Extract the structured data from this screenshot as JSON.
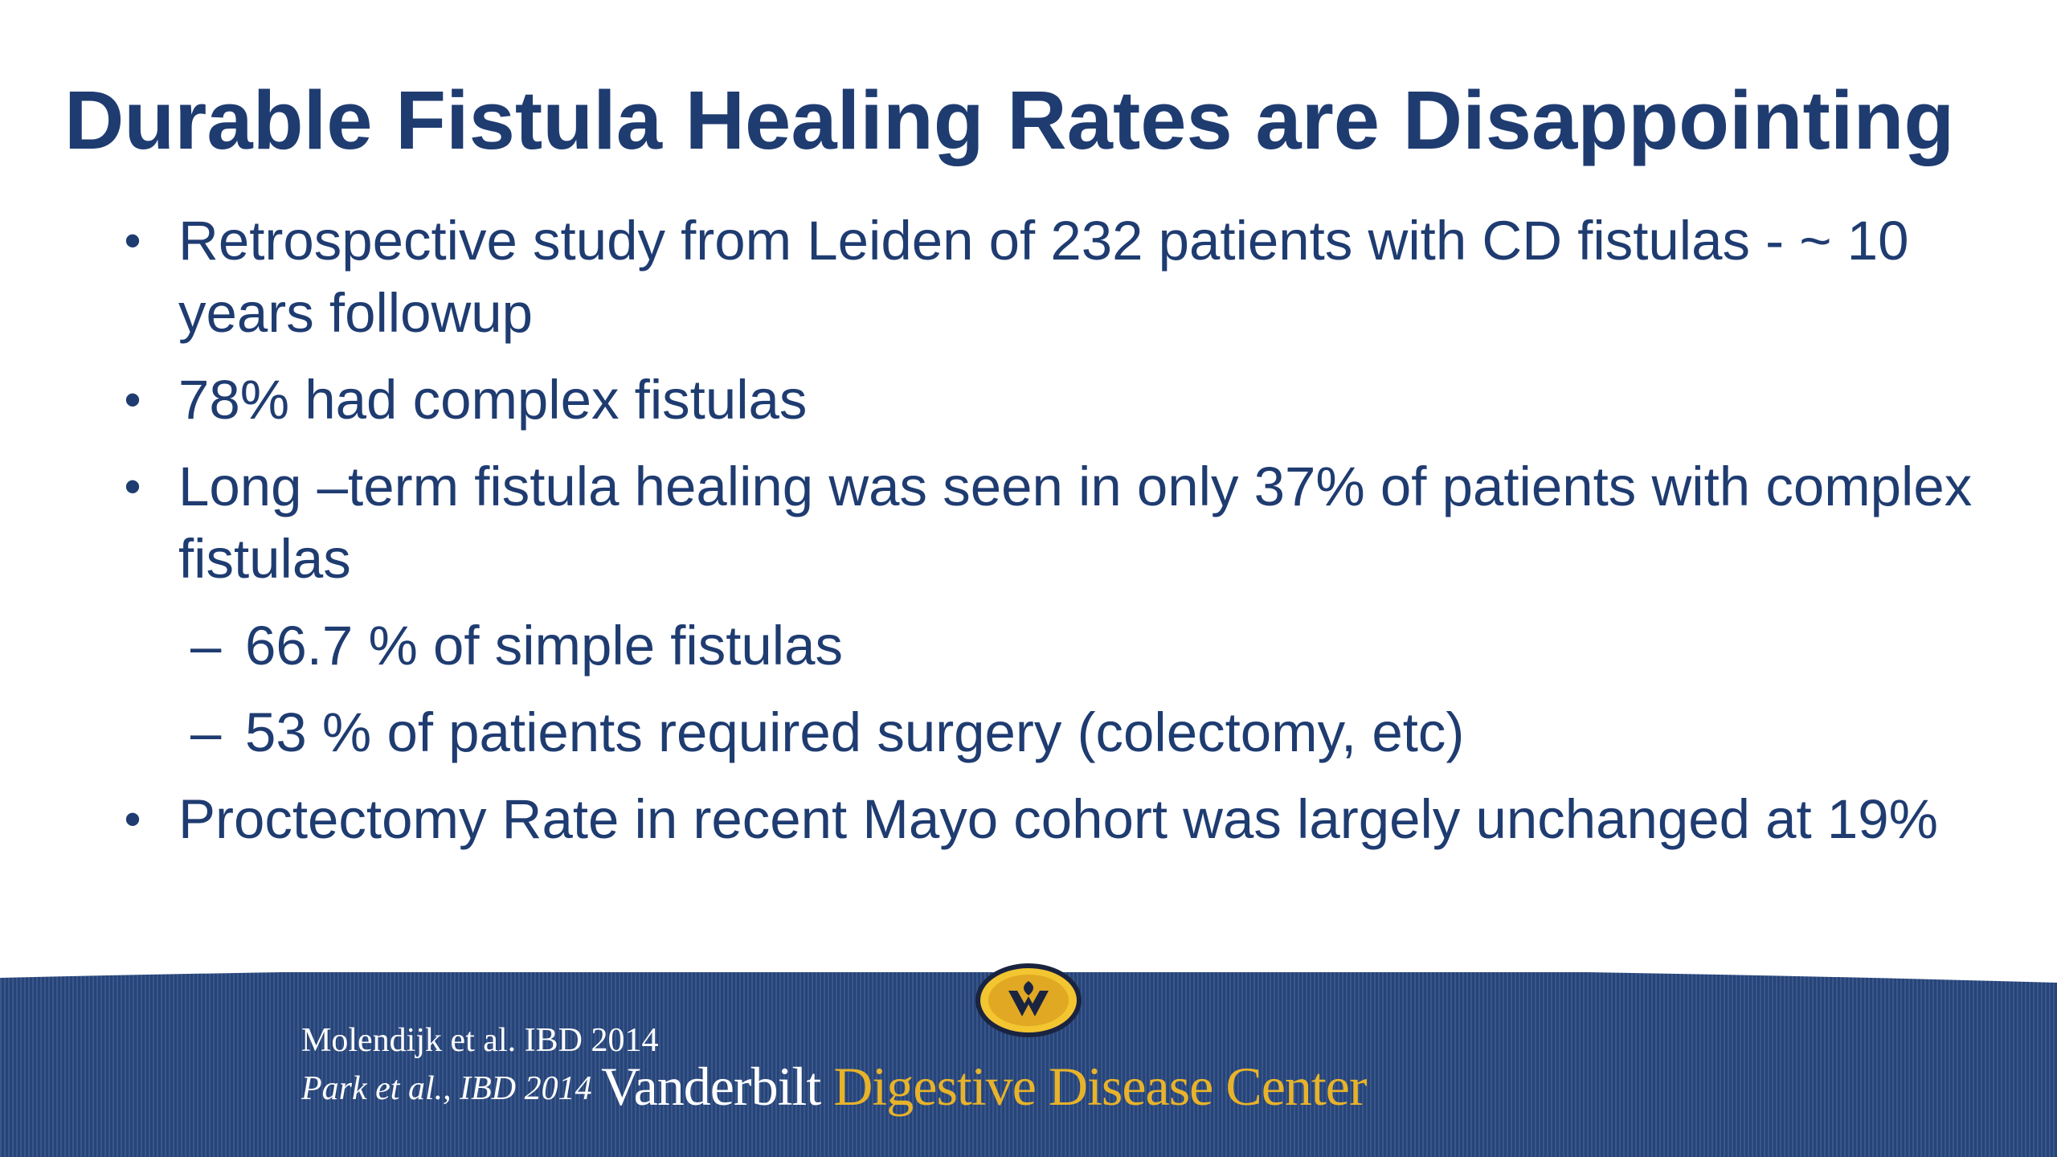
{
  "slide": {
    "title": "Durable Fistula Healing Rates are Disappointing",
    "bullet_marker": "•",
    "sub_marker": "–",
    "bullets": [
      {
        "text": "Retrospective study from Leiden of 232 patients with CD fistulas - ~ 10 years followup"
      },
      {
        "text": "78% had complex fistulas"
      },
      {
        "text": "Long –term fistula healing was seen in only 37% of patients with complex fistulas"
      },
      {
        "text": "66.7 % of simple fistulas"
      },
      {
        "text": "53 % of patients required surgery (colectomy, etc)"
      },
      {
        "text": "Proctectomy Rate in recent Mayo cohort was largely unchanged at 19%"
      }
    ]
  },
  "footer": {
    "citation_1": "Molendijk et al.  IBD 2014",
    "citation_2": "Park et al., IBD 2014",
    "brand_part1": "Vanderbilt",
    "brand_part2": " Digestive Disease Center",
    "colors": {
      "band": "#2a4a82",
      "brand_gold": "#e8b32a",
      "title_navy": "#1f3c71"
    }
  }
}
